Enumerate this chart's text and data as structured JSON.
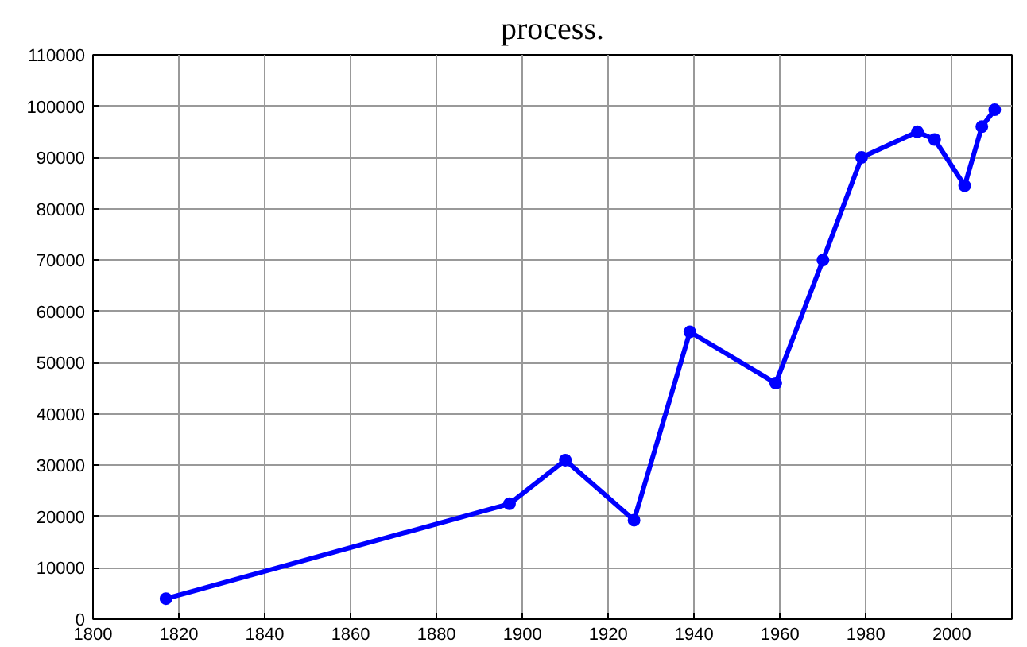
{
  "chart_data": {
    "type": "line",
    "title": "process.",
    "x": [
      1817,
      1897,
      1910,
      1926,
      1939,
      1959,
      1970,
      1979,
      1992,
      1996,
      2003,
      2007,
      2010
    ],
    "series": [
      {
        "color": "#0000ff",
        "values": [
          4000,
          22500,
          31000,
          19300,
          56000,
          46000,
          70000,
          90000,
          95000,
          93500,
          84500,
          96000,
          99300
        ]
      }
    ],
    "xlim": [
      1800,
      2014
    ],
    "xticks": [
      1800,
      1820,
      1840,
      1860,
      1880,
      1900,
      1920,
      1940,
      1960,
      1980,
      2000
    ],
    "ylim": [
      0,
      110000
    ],
    "yticks": [
      0,
      10000,
      20000,
      30000,
      40000,
      50000,
      60000,
      70000,
      80000,
      90000,
      100000,
      110000
    ],
    "grid": true,
    "marker": "circle",
    "line_style": "solid"
  }
}
